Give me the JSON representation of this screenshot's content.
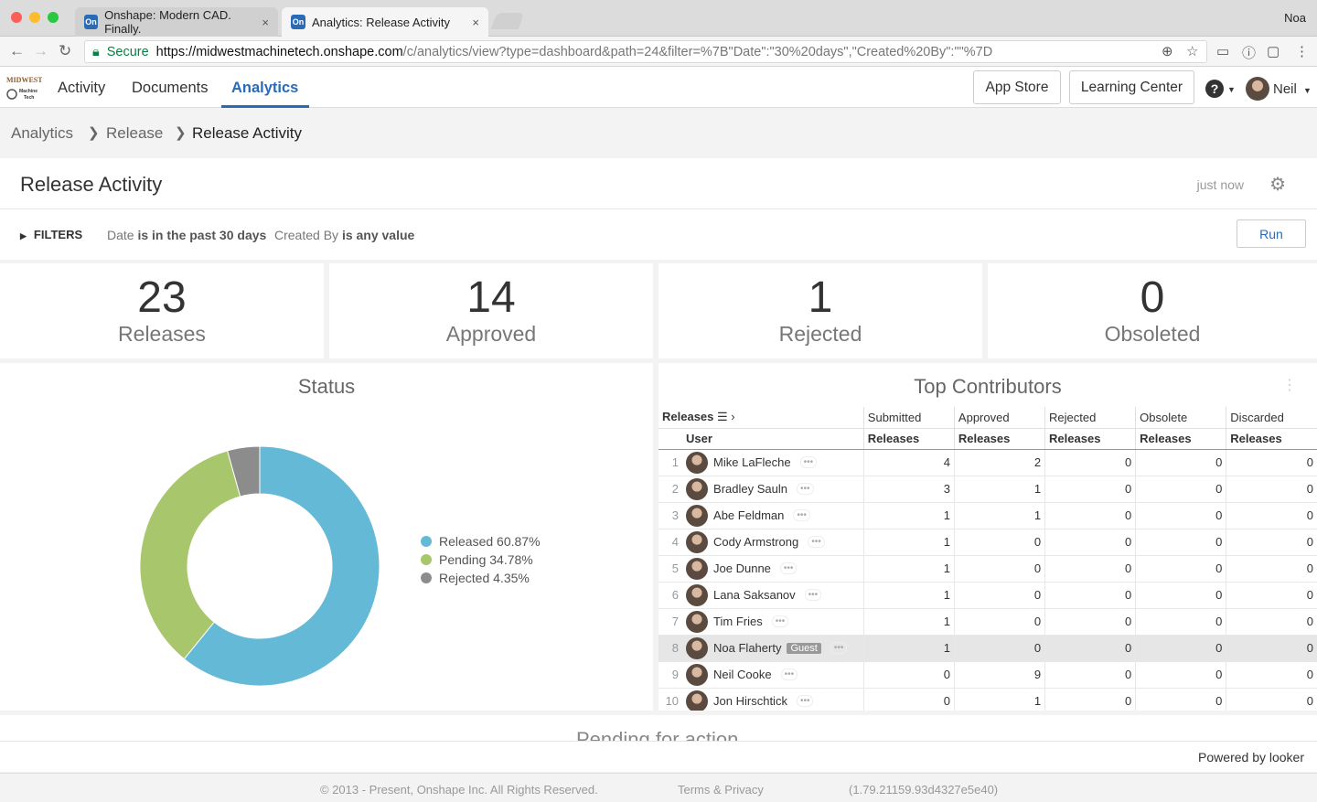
{
  "browser": {
    "tabs": [
      {
        "title": "Onshape: Modern CAD. Finally.",
        "favicon": "On"
      },
      {
        "title": "Analytics: Release Activity",
        "favicon": "On"
      }
    ],
    "profile": "Noa",
    "secure_label": "Secure",
    "url_host": "https://midwestmachinetech.onshape.com",
    "url_rest": "/c/analytics/view?type=dashboard&path=24&filter=%7B\"Date\":\"30%20days\",\"Created%20By\":\"\"%7D"
  },
  "app": {
    "logo_text": "MIDWEST Machine Tech",
    "nav": [
      "Activity",
      "Documents",
      "Analytics"
    ],
    "app_store": "App Store",
    "learning_center": "Learning Center",
    "user": "Neil"
  },
  "breadcrumb": [
    "Analytics",
    "Release",
    "Release Activity"
  ],
  "dashboard": {
    "title": "Release Activity",
    "updated": "just now",
    "filters_label": "FILTERS",
    "filter1_field": "Date",
    "filter1_value": "is in the past 30 days",
    "filter2_field": "Created By",
    "filter2_value": "is any value",
    "run": "Run"
  },
  "tiles": [
    {
      "value": "23",
      "label": "Releases"
    },
    {
      "value": "14",
      "label": "Approved"
    },
    {
      "value": "1",
      "label": "Rejected"
    },
    {
      "value": "0",
      "label": "Obsoleted"
    }
  ],
  "status": {
    "title": "Status",
    "legend": [
      "Released 60.87%",
      "Pending 34.78%",
      "Rejected 4.35%"
    ]
  },
  "chart_data": {
    "type": "pie",
    "title": "Status",
    "categories": [
      "Released",
      "Pending",
      "Rejected"
    ],
    "values": [
      60.87,
      34.78,
      4.35
    ],
    "colors": [
      "#64b9d6",
      "#a8c66c",
      "#8c8c8c"
    ]
  },
  "contributors": {
    "title": "Top Contributors",
    "pivot_label": "Releases",
    "col_groups": [
      "Submitted",
      "Approved",
      "Rejected",
      "Obsolete",
      "Discarded"
    ],
    "sub_header_user": "User",
    "sub_header_metric": "Releases",
    "rows": [
      {
        "idx": "1",
        "name": "Mike LaFleche",
        "guest": "",
        "vals": [
          "4",
          "2",
          "0",
          "0",
          "0"
        ]
      },
      {
        "idx": "2",
        "name": "Bradley Sauln",
        "guest": "",
        "vals": [
          "3",
          "1",
          "0",
          "0",
          "0"
        ]
      },
      {
        "idx": "3",
        "name": "Abe Feldman",
        "guest": "",
        "vals": [
          "1",
          "1",
          "0",
          "0",
          "0"
        ]
      },
      {
        "idx": "4",
        "name": "Cody Armstrong",
        "guest": "",
        "vals": [
          "1",
          "0",
          "0",
          "0",
          "0"
        ]
      },
      {
        "idx": "5",
        "name": "Joe Dunne",
        "guest": "",
        "vals": [
          "1",
          "0",
          "0",
          "0",
          "0"
        ]
      },
      {
        "idx": "6",
        "name": "Lana Saksanov",
        "guest": "",
        "vals": [
          "1",
          "0",
          "0",
          "0",
          "0"
        ]
      },
      {
        "idx": "7",
        "name": "Tim Fries",
        "guest": "",
        "vals": [
          "1",
          "0",
          "0",
          "0",
          "0"
        ]
      },
      {
        "idx": "8",
        "name": "Noa Flaherty",
        "guest": "Guest",
        "vals": [
          "1",
          "0",
          "0",
          "0",
          "0"
        ]
      },
      {
        "idx": "9",
        "name": "Neil Cooke",
        "guest": "",
        "vals": [
          "0",
          "9",
          "0",
          "0",
          "0"
        ]
      },
      {
        "idx": "10",
        "name": "Jon Hirschtick",
        "guest": "",
        "vals": [
          "0",
          "1",
          "0",
          "0",
          "0"
        ]
      }
    ]
  },
  "pending_title": "Pending for action",
  "powered_by": "Powered by looker",
  "footer": {
    "copyright": "© 2013 - Present, Onshape Inc. All Rights Reserved.",
    "terms": "Terms & Privacy",
    "version": "(1.79.21159.93d4327e5e40)"
  }
}
